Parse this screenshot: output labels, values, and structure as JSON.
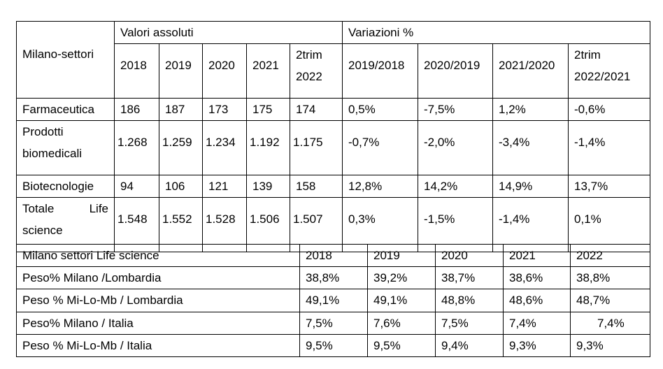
{
  "table1": {
    "corner": "Milano-settori",
    "group_abs": "Valori assoluti",
    "group_var": "Variazioni %",
    "years": [
      "2018",
      "2019",
      "2020",
      "2021",
      "2trim 2022"
    ],
    "variations": [
      "2019/2018",
      "2020/2019",
      "2021/2020",
      "2trim 2022/2021"
    ],
    "rows": [
      {
        "label": "Farmaceutica",
        "abs": [
          "186",
          "187",
          "173",
          "175",
          "174"
        ],
        "var": [
          "0,5%",
          "-7,5%",
          "1,2%",
          "-0,6%"
        ]
      },
      {
        "label": "Prodotti biomedicali",
        "abs": [
          "1.268",
          "1.259",
          "1.234",
          "1.192",
          "1.175"
        ],
        "var": [
          "-0,7%",
          "-2,0%",
          "-3,4%",
          "-1,4%"
        ]
      },
      {
        "label": "Biotecnologie",
        "abs": [
          "94",
          "106",
          "121",
          "139",
          "158"
        ],
        "var": [
          "12,8%",
          "14,2%",
          "14,9%",
          "13,7%"
        ]
      },
      {
        "label": "Totale Life science",
        "abs": [
          "1.548",
          "1.552",
          "1.528",
          "1.506",
          "1.507"
        ],
        "var": [
          "0,3%",
          "-1,5%",
          "-1,4%",
          "0,1%"
        ]
      }
    ]
  },
  "table2": {
    "corner": "Milano settori Life science",
    "years": [
      "2018",
      "2019",
      "2020",
      "2021",
      "2022"
    ],
    "rows": [
      {
        "label": "Peso% Milano /Lombardia",
        "values": [
          "38,8%",
          "39,2%",
          "38,7%",
          "38,6%",
          "38,8%"
        ]
      },
      {
        "label": "Peso % Mi-Lo-Mb / Lombardia",
        "values": [
          "49,1%",
          "49,1%",
          "48,8%",
          "48,6%",
          "48,7%"
        ]
      },
      {
        "label": "Peso% Milano / Italia",
        "values": [
          "7,5%",
          "7,6%",
          "7,5%",
          "7,4%",
          "7,4%"
        ]
      },
      {
        "label": "Peso % Mi-Lo-Mb / Italia",
        "values": [
          "9,5%",
          "9,5%",
          "9,4%",
          "9,3%",
          "9,3%"
        ]
      }
    ]
  }
}
